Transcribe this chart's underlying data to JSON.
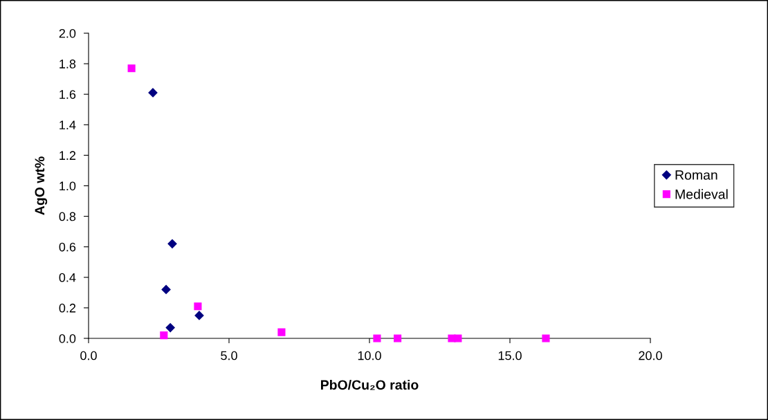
{
  "chart_data": {
    "type": "scatter",
    "xlabel": "PbO/Cu₂O ratio",
    "ylabel": "AgO wt%",
    "xlim": [
      0,
      20
    ],
    "xticks": [
      {
        "value": 0,
        "label": "0.0"
      },
      {
        "value": 5,
        "label": "5.0"
      },
      {
        "value": 10,
        "label": "10.0"
      },
      {
        "value": 15,
        "label": "15.0"
      },
      {
        "value": 20,
        "label": "20.0"
      }
    ],
    "ylim": [
      0,
      2
    ],
    "yticks": [
      {
        "value": 0,
        "label": "0.0"
      },
      {
        "value": 0.2,
        "label": "0.2"
      },
      {
        "value": 0.4,
        "label": "0.4"
      },
      {
        "value": 0.6,
        "label": "0.6"
      },
      {
        "value": 0.8,
        "label": "0.8"
      },
      {
        "value": 1.0,
        "label": "1.0"
      },
      {
        "value": 1.2,
        "label": "1.2"
      },
      {
        "value": 1.4,
        "label": "1.4"
      },
      {
        "value": 1.6,
        "label": "1.6"
      },
      {
        "value": 1.8,
        "label": "1.8"
      },
      {
        "value": 2.0,
        "label": "2.0"
      }
    ],
    "grid": false,
    "legend": "right",
    "series": [
      {
        "name": "Roman",
        "color": "#000080",
        "marker": "diamond",
        "x": [
          2.29,
          2.98,
          2.76,
          2.91,
          3.94
        ],
        "values": [
          1.61,
          0.62,
          0.32,
          0.07,
          0.15
        ]
      },
      {
        "name": "Medieval",
        "color": "#ff00ff",
        "marker": "square",
        "x": [
          1.53,
          2.68,
          3.89,
          6.87,
          10.27,
          11.0,
          12.93,
          13.15,
          16.28
        ],
        "values": [
          1.77,
          0.02,
          0.21,
          0.04,
          0,
          0,
          0,
          0,
          0
        ]
      }
    ]
  }
}
